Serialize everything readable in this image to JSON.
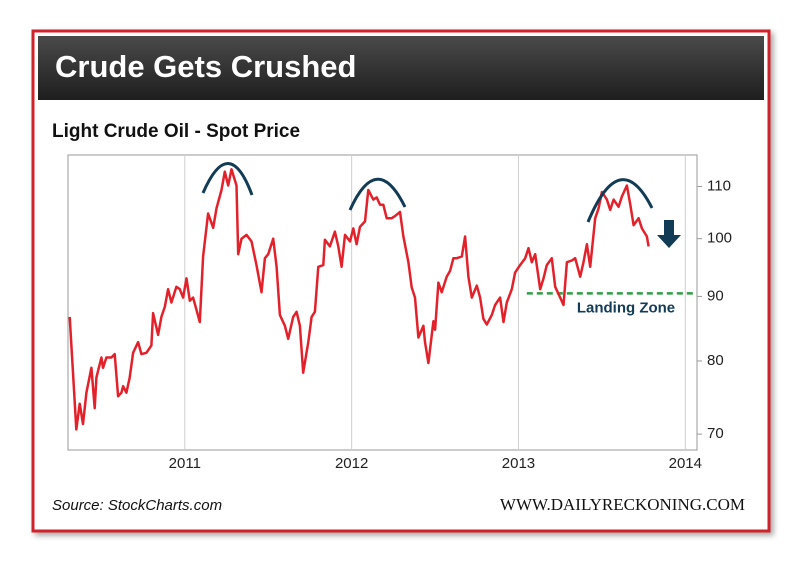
{
  "header": {
    "title": "Crude Gets Crushed"
  },
  "chart_data": {
    "type": "line",
    "title": "Light Crude Oil - Spot Price",
    "x": [
      2010.31,
      2010.33,
      2010.35,
      2010.37,
      2010.39,
      2010.41,
      2010.44,
      2010.46,
      2010.47,
      2010.5,
      2010.51,
      2010.53,
      2010.56,
      2010.58,
      2010.6,
      2010.62,
      2010.63,
      2010.65,
      2010.67,
      2010.69,
      2010.72,
      2010.74,
      2010.77,
      2010.8,
      2010.81,
      2010.84,
      2010.86,
      2010.88,
      2010.9,
      2010.92,
      2010.95,
      2010.97,
      2010.99,
      2011.01,
      2011.03,
      2011.05,
      2011.09,
      2011.11,
      2011.14,
      2011.17,
      2011.19,
      2011.22,
      2011.24,
      2011.26,
      2011.28,
      2011.31,
      2011.32,
      2011.34,
      2011.37,
      2011.4,
      2011.43,
      2011.46,
      2011.48,
      2011.5,
      2011.53,
      2011.55,
      2011.57,
      2011.6,
      2011.62,
      2011.65,
      2011.67,
      2011.69,
      2011.71,
      2011.74,
      2011.76,
      2011.78,
      2011.8,
      2011.83,
      2011.84,
      2011.87,
      2011.9,
      2011.92,
      2011.94,
      2011.96,
      2011.99,
      2012.01,
      2012.03,
      2012.05,
      2012.08,
      2012.1,
      2012.13,
      2012.15,
      2012.17,
      2012.19,
      2012.21,
      2012.24,
      2012.26,
      2012.29,
      2012.31,
      2012.34,
      2012.36,
      2012.38,
      2012.4,
      2012.43,
      2012.44,
      2012.46,
      2012.49,
      2012.5,
      2012.52,
      2012.54,
      2012.57,
      2012.59,
      2012.61,
      2012.63,
      2012.66,
      2012.68,
      2012.7,
      2012.72,
      2012.75,
      2012.77,
      2012.79,
      2012.81,
      2012.84,
      2012.86,
      2012.89,
      2012.91,
      2012.93,
      2012.96,
      2012.98,
      2013.01,
      2013.04,
      2013.06,
      2013.08,
      2013.1,
      2013.13,
      2013.15,
      2013.17,
      2013.2,
      2013.22,
      2013.25,
      2013.27,
      2013.29,
      2013.32,
      2013.34,
      2013.37,
      2013.39,
      2013.41,
      2013.43,
      2013.46,
      2013.48,
      2013.5,
      2013.53,
      2013.55,
      2013.57,
      2013.6,
      2013.62,
      2013.65,
      2013.67,
      2013.69,
      2013.72,
      2013.74,
      2013.77,
      2013.78
    ],
    "values": [
      86.7,
      78.3,
      70.6,
      74,
      71.3,
      75.5,
      79,
      73.4,
      77.6,
      80.5,
      79,
      80.5,
      80.5,
      81,
      75,
      75.5,
      76.4,
      75.5,
      77.6,
      81.2,
      82.8,
      81,
      81.2,
      82.3,
      87.3,
      83.9,
      86.7,
      88.3,
      91.2,
      89,
      91.6,
      91.2,
      89.8,
      93,
      89.3,
      89.8,
      85.9,
      96.8,
      104.7,
      102,
      105.7,
      109.3,
      113,
      110.2,
      113.5,
      110.2,
      97.2,
      100,
      100.7,
      99.5,
      95.3,
      90.7,
      96.5,
      97.2,
      100,
      95,
      87,
      85.3,
      83.3,
      86.7,
      87.5,
      85.3,
      78.3,
      82.8,
      86.7,
      87.5,
      95,
      95.3,
      99.8,
      98.6,
      101.3,
      98.6,
      95,
      100.7,
      99.5,
      101.9,
      99,
      102.2,
      103.2,
      109.3,
      107.4,
      107.8,
      106.4,
      106.4,
      103.8,
      103.8,
      104.2,
      105,
      100.4,
      95.8,
      91.5,
      89.8,
      83.5,
      85.3,
      82.8,
      79.7,
      86,
      84.7,
      92.3,
      90.7,
      93.3,
      94.3,
      96.5,
      96.5,
      96.8,
      100.4,
      93.3,
      89.8,
      91.8,
      89.8,
      86.4,
      85.5,
      87,
      88.6,
      89.8,
      85.9,
      89,
      91.2,
      94,
      95.3,
      96.5,
      98.3,
      95.8,
      97.2,
      91.2,
      93,
      95.3,
      96.5,
      91.6,
      89.8,
      88.6,
      95.8,
      96.1,
      96.5,
      93.3,
      95.8,
      99,
      95,
      103.8,
      105.7,
      108.9,
      107.4,
      105.4,
      107.4,
      106,
      108,
      110.2,
      106.4,
      102.5,
      103.8,
      101.9,
      100.4,
      98.6
    ],
    "color": "#e3212b",
    "xlim": [
      2010.3,
      2014.07
    ],
    "xticks": [
      2011,
      2012,
      2013,
      2014
    ],
    "ylim": [
      68,
      116.5
    ],
    "yticks": [
      70,
      80,
      90,
      100,
      110
    ],
    "log_scale": "y",
    "grid": "x",
    "reference_line": {
      "label": "Landing Zone",
      "value": 90.5,
      "x_start": 2013.05,
      "color": "#2e9e44"
    }
  },
  "footer": {
    "source": "Source: StockCharts.com",
    "website": "WWW.DAILYRECKONING.COM"
  }
}
